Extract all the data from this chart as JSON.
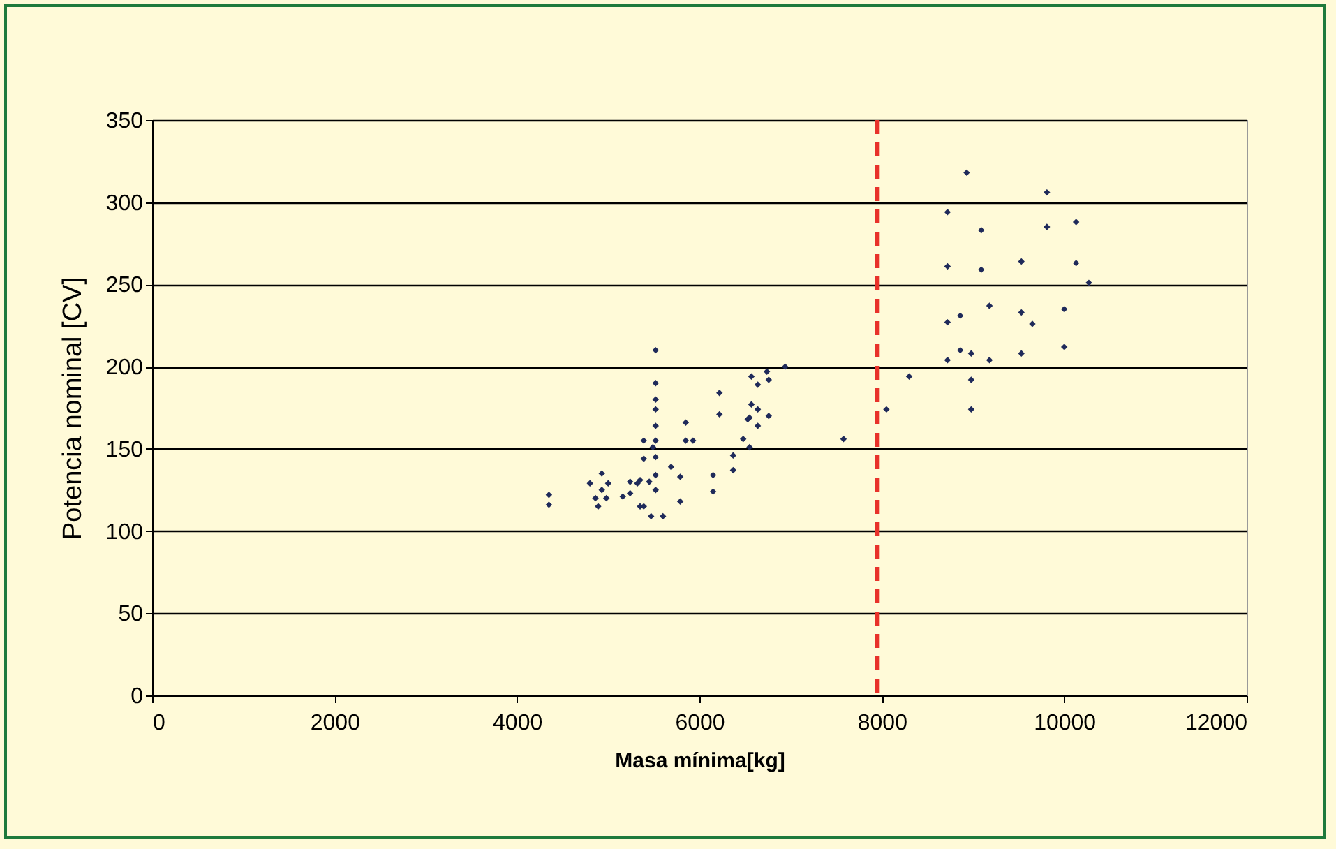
{
  "chart_data": {
    "type": "scatter",
    "xlabel": "Masa mínima[kg]",
    "ylabel": "Potencia nominal [CV]",
    "xlim": [
      0,
      12000
    ],
    "xticks": [
      0,
      2000,
      4000,
      6000,
      8000,
      10000,
      12000
    ],
    "ylim": [
      0,
      350
    ],
    "yticks": [
      0,
      50,
      100,
      150,
      200,
      250,
      300,
      350
    ],
    "grid": "y",
    "marker": "diamond",
    "legend": false,
    "ref_lines": [
      {
        "axis": "x",
        "value": 7950,
        "color": "#e8322a",
        "line_style": "dashed"
      }
    ],
    "series": [
      {
        "color": "#1f2a5a",
        "x": [
          4350,
          4350,
          4800,
          4930,
          4860,
          4930,
          4890,
          4980,
          5000,
          5160,
          5240,
          5240,
          5320,
          5350,
          5450,
          5350,
          5390,
          5470,
          5600,
          5520,
          5520,
          5520,
          5520,
          5520,
          5520,
          5390,
          5490,
          5390,
          5520,
          5520,
          5520,
          5690,
          5790,
          5790,
          5850,
          5850,
          5930,
          6150,
          6150,
          6220,
          6220,
          6370,
          6370,
          6480,
          6550,
          6530,
          6550,
          6640,
          6570,
          6640,
          6570,
          6640,
          6760,
          6740,
          6760,
          6940,
          7580,
          8050,
          8300,
          8720,
          8720,
          8720,
          8720,
          8860,
          8860,
          8930,
          8980,
          8980,
          8980,
          9090,
          9090,
          9180,
          9180,
          9530,
          9530,
          9530,
          9650,
          9810,
          9810,
          10000,
          10000,
          10130,
          10130,
          10270
        ],
        "values": [
          122,
          116,
          129,
          135,
          120,
          125,
          115,
          120,
          129,
          121,
          130,
          123,
          129,
          131,
          130,
          115,
          115,
          109,
          109,
          210,
          190,
          180,
          174,
          164,
          155,
          155,
          151,
          144,
          145,
          134,
          125,
          139,
          133,
          118,
          166,
          155,
          155,
          134,
          124,
          184,
          171,
          146,
          137,
          156,
          151,
          168,
          169,
          164,
          194,
          189,
          177,
          174,
          170,
          197,
          192,
          200,
          156,
          174,
          194,
          294,
          261,
          227,
          204,
          231,
          210,
          318,
          208,
          192,
          174,
          283,
          259,
          237,
          204,
          264,
          233,
          208,
          226,
          306,
          285,
          235,
          212,
          288,
          263,
          251
        ]
      }
    ]
  }
}
